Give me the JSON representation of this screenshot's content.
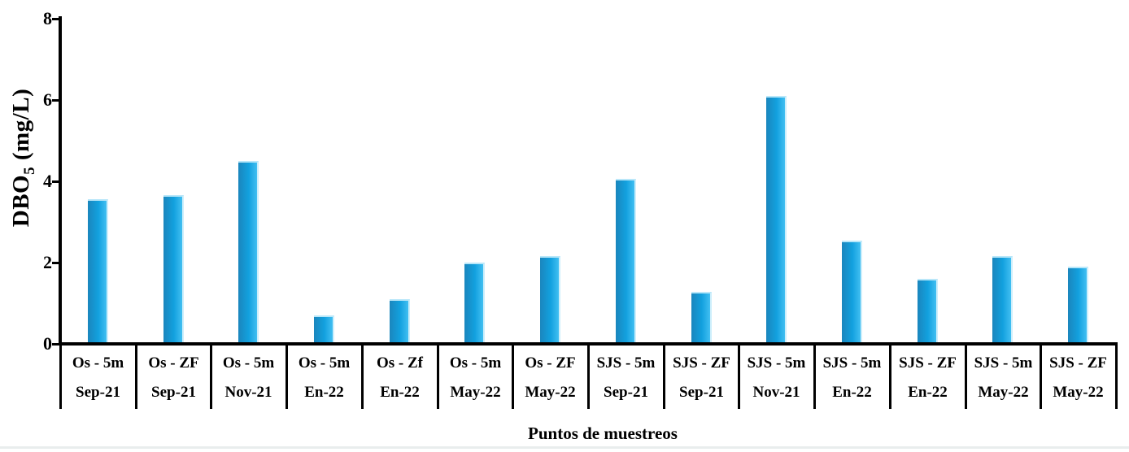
{
  "chart_data": {
    "type": "bar",
    "title": "",
    "xlabel": "Puntos de muestreos",
    "ylabel": "DBO5 (mg/L)",
    "ylabel_parts": {
      "prefix": "DBO",
      "sub": "5",
      "suffix": " (mg/L)"
    },
    "ylim": [
      0,
      8
    ],
    "yticks": [
      0,
      2,
      4,
      6,
      8
    ],
    "grid": false,
    "legend": "none",
    "bar_color": "#12a0de",
    "bar_gradient": [
      "#1b86bd",
      "#12a0de",
      "#41bff2"
    ],
    "axis_color": "#000000",
    "categories": [
      {
        "station": "Os - 5m",
        "date": "Sep-21"
      },
      {
        "station": "Os - ZF",
        "date": "Sep-21"
      },
      {
        "station": "Os - 5m",
        "date": "Nov-21"
      },
      {
        "station": "Os - 5m",
        "date": "En-22"
      },
      {
        "station": "Os - Zf",
        "date": "En-22"
      },
      {
        "station": "Os - 5m",
        "date": "May-22"
      },
      {
        "station": "Os - ZF",
        "date": "May-22"
      },
      {
        "station": "SJS - 5m",
        "date": "Sep-21"
      },
      {
        "station": "SJS - ZF",
        "date": "Sep-21"
      },
      {
        "station": "SJS - 5m",
        "date": "Nov-21"
      },
      {
        "station": "SJS - 5m",
        "date": "En-22"
      },
      {
        "station": "SJS - ZF",
        "date": "En-22"
      },
      {
        "station": "SJS - 5m",
        "date": "May-22"
      },
      {
        "station": "SJS - ZF",
        "date": "May-22"
      }
    ],
    "values": [
      3.55,
      3.65,
      4.5,
      0.7,
      1.1,
      2.0,
      2.15,
      4.05,
      1.27,
      6.1,
      2.55,
      1.6,
      2.15,
      1.9
    ]
  }
}
